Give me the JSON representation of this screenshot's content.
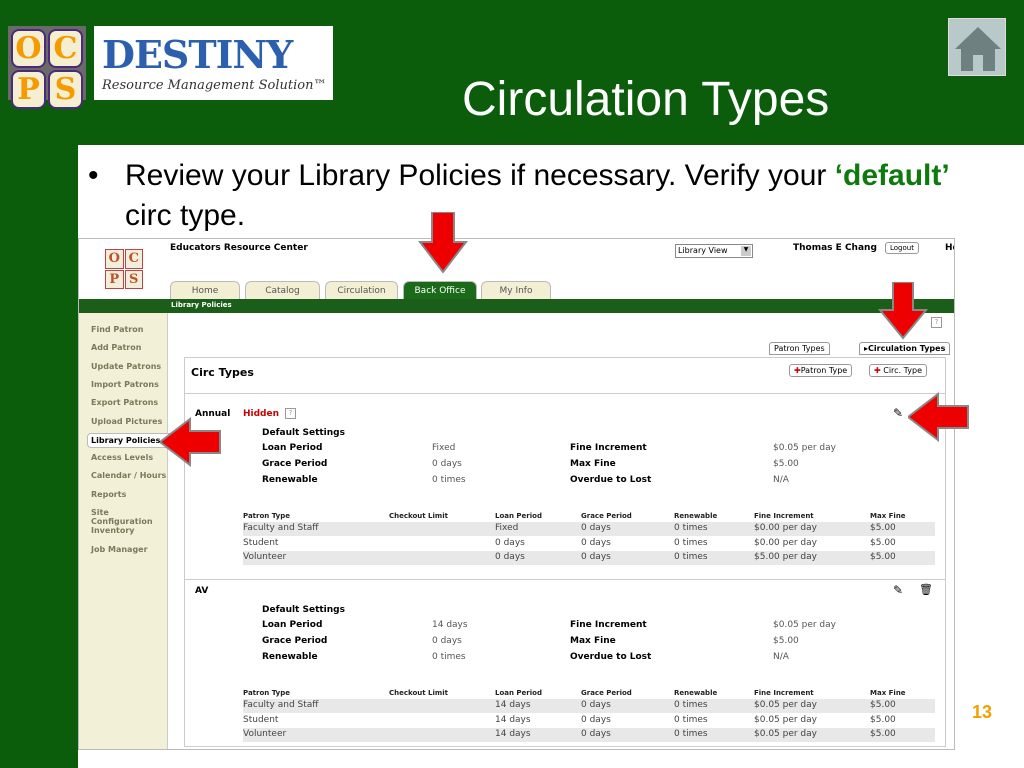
{
  "slide": {
    "title": "Circulation Types",
    "bullet_symbol": "•",
    "bullet_text_1": "Review your Library Policies if necessary. Verify your ",
    "bullet_highlight": "‘default’",
    "bullet_text_2": " circ type.",
    "page_number": "13",
    "logo_ocps": [
      "O",
      "C",
      "P",
      "S"
    ],
    "logo_destiny": "DESTINY",
    "logo_tagline": "Resource Management Solution™",
    "home_icon": "home-icon"
  },
  "app": {
    "site_name": "Educators Resource Center",
    "view_select": "Library View",
    "user": "Thomas E Chang",
    "logout": "Logout",
    "help": "He",
    "tabs": [
      "Home",
      "Catalog",
      "Circulation",
      "Back Office",
      "My Info"
    ],
    "active_tab": "Back Office",
    "subnav": "Library Policies",
    "sidebar": [
      "Find Patron",
      "Add Patron",
      "Update Patrons",
      "Import Patrons",
      "Export Patrons",
      "Upload Pictures",
      "Library Policies",
      "Access Levels",
      "Calendar / Hours",
      "Reports",
      "Site Configuration",
      "Inventory",
      "Job Manager"
    ],
    "active_sidebar": "Library Policies",
    "subtabs": [
      "Patron Types",
      "Circulation Types"
    ],
    "heading": "Circ Types",
    "add_patron_type": "Patron Type",
    "add_circ_type": "Circ. Type",
    "columns": [
      "Patron Type",
      "Checkout Limit",
      "Loan Period",
      "Grace Period",
      "Renewable",
      "Fine Increment",
      "Max Fine"
    ],
    "circ_types": [
      {
        "name": "Annual",
        "status": "Hidden",
        "default_label": "Default Settings",
        "settings": [
          [
            "Loan Period",
            "Fixed",
            "Fine Increment",
            "$0.05 per day"
          ],
          [
            "Grace Period",
            "0 days",
            "Max Fine",
            "$5.00"
          ],
          [
            "Renewable",
            "0 times",
            "Overdue to Lost",
            "N/A"
          ]
        ],
        "rows": [
          [
            "Faculty and Staff",
            "",
            "Fixed",
            "0 days",
            "0 times",
            "$0.00 per day",
            "$5.00"
          ],
          [
            "Student",
            "",
            "0 days",
            "0 days",
            "0 times",
            "$0.00 per day",
            "$5.00"
          ],
          [
            "Volunteer",
            "",
            "0 days",
            "0 days",
            "0 times",
            "$5.00 per day",
            "$5.00"
          ]
        ]
      },
      {
        "name": "AV",
        "status": "",
        "default_label": "Default Settings",
        "settings": [
          [
            "Loan Period",
            "14 days",
            "Fine Increment",
            "$0.05 per day"
          ],
          [
            "Grace Period",
            "0 days",
            "Max Fine",
            "$5.00"
          ],
          [
            "Renewable",
            "0 times",
            "Overdue to Lost",
            "N/A"
          ]
        ],
        "rows": [
          [
            "Faculty and Staff",
            "",
            "14 days",
            "0 days",
            "0 times",
            "$0.05 per day",
            "$5.00"
          ],
          [
            "Student",
            "",
            "14 days",
            "0 days",
            "0 times",
            "$0.05 per day",
            "$5.00"
          ],
          [
            "Volunteer",
            "",
            "14 days",
            "0 days",
            "0 times",
            "$0.05 per day",
            "$5.00"
          ]
        ]
      }
    ]
  },
  "colors": {
    "slide_bg": "#0b5c0b",
    "highlight": "#0d7a0d",
    "arrow": "#e00000",
    "page_number": "#f0a000",
    "hidden": "#cc0000"
  }
}
